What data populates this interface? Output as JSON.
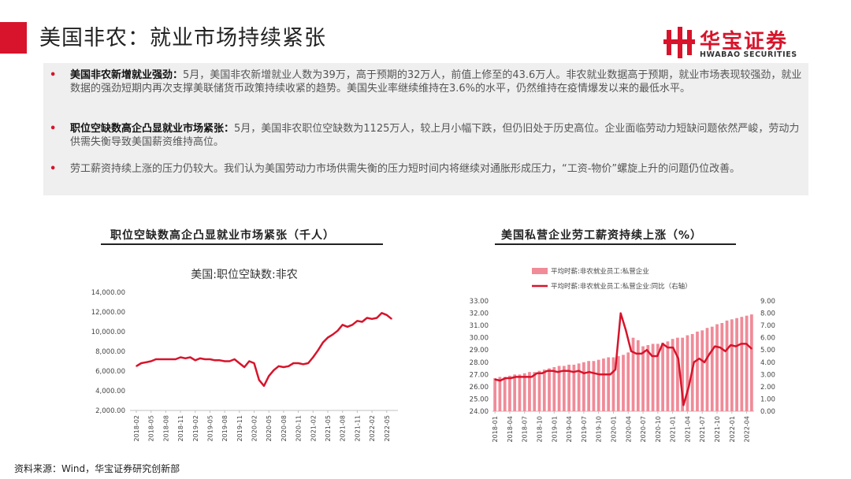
{
  "header": {
    "title": "美国非农：就业市场持续紧张",
    "logo_cn": "华宝证券",
    "logo_en": "HWABAO SECURITIES"
  },
  "summary": {
    "bullets": [
      {
        "bold": "美国非农新增就业强劲：",
        "text": "5月，美国非农新增就业人数为39万，高于预期的32万人，前值上修至的43.6万人。非农就业数据高于预期，就业市场表现较强劲，就业数据的强劲短期内再次支撑美联储货币政策持续收紧的趋势。美国失业率继续维持在3.6%的水平，仍然维持在疫情爆发以来的最低水平。"
      },
      {
        "bold": "职位空缺数高企凸显就业市场紧张：",
        "text": "5月，美国非农职位空缺数为1125万人，较上月小幅下跌，但仍旧处于历史高位。企业面临劳动力短缺问题依然严峻，劳动力供需失衡导致美国薪资维持高位。"
      },
      {
        "bold": "",
        "text": "劳工薪资持续上涨的压力仍较大。我们认为美国劳动力市场供需失衡的压力短时间内将继续对通胀形成压力，“工资-物价”螺旋上升的问题仍位改善。"
      }
    ]
  },
  "source": "资料来源：Wind，华宝证券研究创新部",
  "colors": {
    "accent": "#d7142b",
    "bar": "#f08b98"
  },
  "chart_data": [
    {
      "type": "line",
      "header": "职位空缺数高企凸显就业市场紧张（千人）",
      "title": "美国:职位空缺数:非农",
      "ylim": [
        2000,
        14000
      ],
      "yticks": [
        "2,000.00",
        "4,000.00",
        "6,000.00",
        "8,000.00",
        "10,000.00",
        "12,000.00",
        "14,000.00"
      ],
      "xticks": [
        "2018-02",
        "2018-05",
        "2018-08",
        "2018-11",
        "2019-02",
        "2019-05",
        "2019-08",
        "2019-11",
        "2020-02",
        "2020-05",
        "2020-08",
        "2020-11",
        "2021-02",
        "2021-05",
        "2021-08",
        "2021-11",
        "2022-02",
        "2022-05"
      ],
      "grid": false,
      "series": [
        {
          "name": "美国:职位空缺数:非农",
          "color": "#d7142b",
          "values": [
            6500,
            6800,
            6900,
            7000,
            7200,
            7200,
            7200,
            7200,
            7200,
            7400,
            7300,
            7400,
            7100,
            7300,
            7200,
            7200,
            7100,
            7100,
            7000,
            7000,
            7200,
            6800,
            6400,
            7000,
            6800,
            5100,
            4500,
            5500,
            6100,
            6500,
            6400,
            6500,
            6800,
            6800,
            6700,
            6800,
            7400,
            8100,
            8900,
            9400,
            9700,
            10100,
            10700,
            10500,
            10700,
            11100,
            11000,
            11400,
            11300,
            11400,
            11900,
            11700,
            11300
          ]
        }
      ]
    },
    {
      "type": "bar+line",
      "header": "美国私营企业劳工薪资持续上涨（%）",
      "ylim_left": [
        24,
        33
      ],
      "ylim_right": [
        0,
        9
      ],
      "yticks_left": [
        "24.00",
        "25.00",
        "26.00",
        "27.00",
        "28.00",
        "29.00",
        "30.00",
        "31.00",
        "32.00",
        "33.00"
      ],
      "yticks_right": [
        "0.00",
        "1.00",
        "2.00",
        "3.00",
        "4.00",
        "5.00",
        "6.00",
        "7.00",
        "8.00",
        "9.00"
      ],
      "xticks": [
        "2018-01",
        "2018-04",
        "2018-07",
        "2018-10",
        "2019-01",
        "2019-04",
        "2019-07",
        "2019-10",
        "2020-01",
        "2020-04",
        "2020-07",
        "2020-10",
        "2021-01",
        "2021-04",
        "2021-07",
        "2021-10",
        "2022-01",
        "2022-04"
      ],
      "grid": false,
      "legend": [
        "平均时薪:非农就业员工:私营企业",
        "平均时薪:非农就业员工:私营企业:同比（右轴）"
      ],
      "series": [
        {
          "name": "平均时薪:非农就业员工:私营企业",
          "type": "bar",
          "axis": "left",
          "color": "#f08b98",
          "values": [
            26.7,
            26.8,
            26.8,
            26.9,
            27.0,
            27.0,
            27.1,
            27.2,
            27.2,
            27.3,
            27.4,
            27.5,
            27.6,
            27.7,
            27.7,
            27.8,
            27.8,
            27.9,
            28.0,
            28.1,
            28.1,
            28.2,
            28.3,
            28.4,
            28.4,
            28.5,
            28.6,
            28.8,
            30.0,
            29.8,
            29.3,
            29.4,
            29.5,
            29.5,
            29.6,
            29.7,
            29.9,
            30.0,
            30.0,
            30.2,
            30.3,
            30.5,
            30.6,
            30.8,
            30.9,
            31.1,
            31.2,
            31.4,
            31.5,
            31.6,
            31.7,
            31.8,
            31.9
          ]
        },
        {
          "name": "平均时薪:非农就业员工:私营企业:同比（右轴）",
          "type": "line",
          "axis": "right",
          "color": "#d7142b",
          "values": [
            2.6,
            2.5,
            2.7,
            2.7,
            2.8,
            2.8,
            2.8,
            2.8,
            3.1,
            3.1,
            3.3,
            3.3,
            3.2,
            3.3,
            3.3,
            3.2,
            3.3,
            3.1,
            3.2,
            3.1,
            3.0,
            3.0,
            3.0,
            3.4,
            8.0,
            6.6,
            4.9,
            4.7,
            4.7,
            5.0,
            4.5,
            4.5,
            5.5,
            5.2,
            5.2,
            4.3,
            0.5,
            2.0,
            4.0,
            4.3,
            4.0,
            4.7,
            5.3,
            5.2,
            4.9,
            5.4,
            5.3,
            5.5,
            5.5,
            5.1
          ]
        }
      ]
    }
  ]
}
